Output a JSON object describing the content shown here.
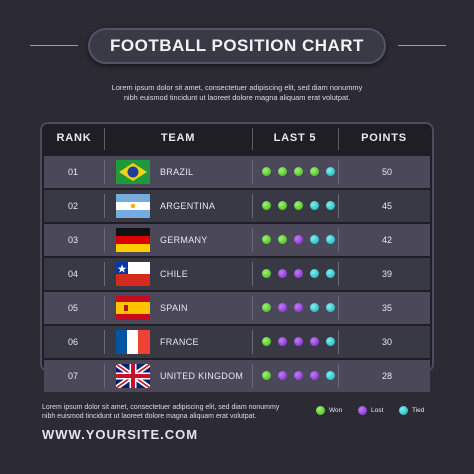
{
  "header": {
    "title": "FOOTBALL POSITION CHART",
    "subtitle": [
      "Lorem ipsum dolor sit amet, consectetuer adipiscing elit, sed diam nonummy",
      "nibh euismod tincidunt ut laoreet dolore magna aliquam erat volutpat."
    ]
  },
  "table": {
    "columns": [
      "RANK",
      "TEAM",
      "LAST 5",
      "POINTS"
    ],
    "rows": [
      [
        "01",
        "BRAZIL",
        50
      ],
      [
        "02",
        "ARGENTINA",
        45
      ],
      [
        "03",
        "GERMANY",
        42
      ],
      [
        "04",
        "CHILE",
        39
      ],
      [
        "05",
        "SPAIN",
        35
      ],
      [
        "06",
        "FRANCE",
        30
      ],
      [
        "07",
        "UNITED KINGDOM",
        28
      ]
    ]
  },
  "legend": [
    "Won",
    "Lost",
    "Tied"
  ],
  "footer": {
    "text": [
      "Lorem ipsum dolor sit amet, consectetuer adipiscing elit, sed diam nonummy",
      "nibh euismod tincidunt ut laoreet dolore magna aliquam erat volutpat."
    ],
    "website": "WWW.YOURSITE.COM"
  }
}
